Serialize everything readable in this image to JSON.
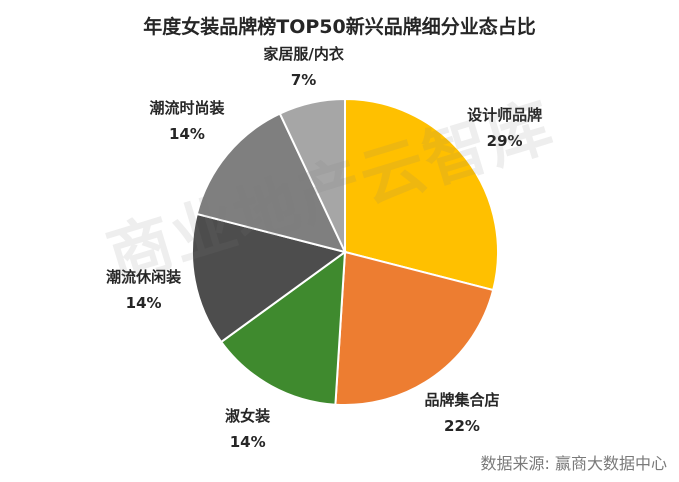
{
  "chart_data": {
    "type": "pie",
    "title": "年度女装品牌榜TOP50新兴品牌细分业态占比",
    "categories": [
      "设计师品牌",
      "品牌集合店",
      "淑女装",
      "潮流休闲装",
      "潮流时尚装",
      "家居服/内衣"
    ],
    "values": [
      29,
      22,
      14,
      14,
      14,
      7
    ],
    "value_labels": [
      "29%",
      "22%",
      "14%",
      "14%",
      "14%",
      "7%"
    ],
    "colors": [
      "#FFC000",
      "#ED7D31",
      "#3F8A2E",
      "#4D4D4D",
      "#7F7F7F",
      "#A6A6A6"
    ],
    "start_angle": "12 o'clock",
    "direction": "clockwise",
    "legend": "none",
    "label_position": "outside"
  },
  "watermark": "商业地产云智库",
  "source": {
    "label": "数据来源:",
    "value": "赢商大数据中心"
  }
}
